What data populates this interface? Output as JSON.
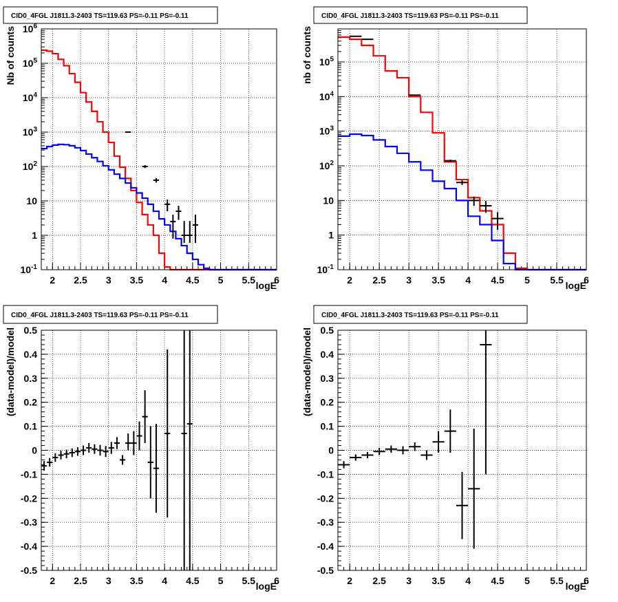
{
  "chart_data": [
    {
      "type": "step",
      "title": "CID0_4FGL J1811.3-2403 TS=119.63 PS=-0.11 PS=-0.11",
      "xlabel": "logE",
      "ylabel": "Nb of counts",
      "xlim": [
        1.8,
        6.0
      ],
      "ylim": [
        0.1,
        1000000
      ],
      "yscale": "log",
      "grid": true,
      "x_ticks": [
        "2",
        "2.5",
        "3",
        "3.5",
        "4",
        "4.5",
        "5",
        "5.5",
        "6"
      ],
      "y_ticks": [
        "10^-1",
        "1",
        "10",
        "10^2",
        "10^3",
        "10^4",
        "10^5",
        "10^6"
      ],
      "bin_edges": [
        1.8,
        1.9,
        2.0,
        2.1,
        2.2,
        2.3,
        2.4,
        2.5,
        2.6,
        2.7,
        2.8,
        2.9,
        3.0,
        3.1,
        3.2,
        3.3,
        3.4,
        3.5,
        3.6,
        3.7,
        3.8,
        3.9,
        4.0,
        4.1,
        4.2,
        4.3,
        4.4,
        4.5,
        4.6,
        4.7,
        4.8,
        4.9,
        5.0,
        5.1,
        5.2,
        5.3,
        5.4,
        5.5,
        5.6,
        5.7,
        5.8,
        5.9,
        6.0
      ],
      "series": [
        {
          "color": "#ff0000",
          "values": [
            240000,
            225000,
            190000,
            130000,
            85000,
            50000,
            28000,
            14000,
            7500,
            4000,
            2000,
            1000,
            500,
            200,
            95,
            45,
            20,
            9,
            4,
            2,
            1,
            0.3,
            0.12,
            0.1,
            0.1,
            0.1,
            0.1,
            0.1,
            0.1,
            0.1,
            0.1,
            0.1,
            0.1,
            0.1,
            0.1,
            0.1,
            0.1,
            0.1,
            0.1,
            0.1,
            0.1,
            0.1
          ]
        },
        {
          "color": "#0000ff",
          "values": [
            330,
            380,
            420,
            440,
            430,
            400,
            350,
            290,
            230,
            180,
            140,
            105,
            80,
            60,
            45,
            33,
            24,
            17,
            12,
            8,
            5,
            3,
            2,
            1.3,
            0.8,
            0.5,
            0.3,
            0.2,
            0.14,
            0.11,
            0.1,
            0.1,
            0.1,
            0.1,
            0.1,
            0.1,
            0.1,
            0.1,
            0.1,
            0.1,
            0.1,
            0.1
          ]
        }
      ],
      "data_points": [
        {
          "x": 3.35,
          "y": 1000,
          "xerr": 0.05,
          "ylo": 960,
          "yhi": 1040
        },
        {
          "x": 3.65,
          "y": 100,
          "xerr": 0.05,
          "ylo": 90,
          "yhi": 110
        },
        {
          "x": 3.85,
          "y": 40,
          "xerr": 0.05,
          "ylo": 34,
          "yhi": 46
        },
        {
          "x": 4.05,
          "y": 8,
          "xerr": 0.05,
          "ylo": 5,
          "yhi": 11
        },
        {
          "x": 4.15,
          "y": 2.5,
          "xerr": 0.05,
          "ylo": 0.8,
          "yhi": 4
        },
        {
          "x": 4.25,
          "y": 5,
          "xerr": 0.05,
          "ylo": 2.8,
          "yhi": 7.2
        },
        {
          "x": 4.35,
          "y": 1,
          "xerr": 0.05,
          "ylo": 0.6,
          "yhi": 2.6
        },
        {
          "x": 4.45,
          "y": 1,
          "xerr": 0.05,
          "ylo": 0.6,
          "yhi": 2.6
        },
        {
          "x": 4.55,
          "y": 2,
          "xerr": 0.05,
          "ylo": 0.6,
          "yhi": 4
        }
      ]
    },
    {
      "type": "step",
      "title": "CID0_4FGL J1811.3-2403 TS=119.63 PS=-0.11 PS=-0.11",
      "xlabel": "logE",
      "ylabel": "nb of counts",
      "xlim": [
        1.8,
        6.0
      ],
      "ylim": [
        0.1,
        900000
      ],
      "yscale": "log",
      "grid": true,
      "x_ticks": [
        "2",
        "2.5",
        "3",
        "3.5",
        "4",
        "4.5",
        "5",
        "5.5",
        "6"
      ],
      "y_ticks": [
        "10^-1",
        "1",
        "10",
        "10^2",
        "10^3",
        "10^4",
        "10^5"
      ],
      "bin_edges": [
        1.8,
        2.0,
        2.2,
        2.4,
        2.6,
        2.8,
        3.0,
        3.2,
        3.4,
        3.6,
        3.8,
        4.0,
        4.2,
        4.4,
        4.6,
        4.8,
        5.0,
        5.2,
        5.4,
        5.6,
        5.8,
        6.0
      ],
      "series": [
        {
          "color": "#ff0000",
          "values": [
            520000,
            450000,
            300000,
            150000,
            55000,
            35000,
            10000,
            3500,
            900,
            130,
            40,
            12,
            5,
            2,
            0.3,
            0.11,
            0.1,
            0.1,
            0.1,
            0.1,
            0.1
          ]
        },
        {
          "color": "#0000ff",
          "values": [
            720,
            820,
            750,
            560,
            360,
            230,
            130,
            75,
            36,
            22,
            10,
            3.5,
            2,
            0.7,
            0.15,
            0.1,
            0.1,
            0.1,
            0.1,
            0.1,
            0.1
          ]
        }
      ],
      "data_points": [
        {
          "x": 2.1,
          "y": 550000,
          "xerr": 0.1,
          "ylo": 540000,
          "yhi": 560000
        },
        {
          "x": 2.3,
          "y": 450000,
          "xerr": 0.1,
          "ylo": 440000,
          "yhi": 460000
        },
        {
          "x": 3.1,
          "y": 11000,
          "xerr": 0.1,
          "ylo": 10700,
          "yhi": 11300
        },
        {
          "x": 3.7,
          "y": 140,
          "xerr": 0.1,
          "ylo": 128,
          "yhi": 152
        },
        {
          "x": 3.9,
          "y": 33,
          "xerr": 0.1,
          "ylo": 28,
          "yhi": 38
        },
        {
          "x": 4.1,
          "y": 10,
          "xerr": 0.1,
          "ylo": 7,
          "yhi": 13
        },
        {
          "x": 4.3,
          "y": 7,
          "xerr": 0.1,
          "ylo": 4.4,
          "yhi": 9.6
        },
        {
          "x": 4.5,
          "y": 3,
          "xerr": 0.1,
          "ylo": 1.4,
          "yhi": 4.6
        }
      ]
    },
    {
      "type": "scatter",
      "title": "CID0_4FGL J1811.3-2403 TS=119.63 PS=-0.11 PS=-0.11",
      "xlabel": "logE",
      "ylabel": "(data-model)/model",
      "xlim": [
        1.8,
        6.0
      ],
      "ylim": [
        -0.5,
        0.5
      ],
      "grid": true,
      "x_ticks": [
        "2",
        "2.5",
        "3",
        "3.5",
        "4",
        "4.5",
        "5",
        "5.5",
        "6"
      ],
      "y_ticks": [
        "-0.5",
        "-0.4",
        "-0.3",
        "-0.2",
        "-0.1",
        "0",
        "0.1",
        "0.2",
        "0.3",
        "0.4",
        "0.5"
      ],
      "data_points": [
        {
          "x": 1.85,
          "y": -0.065,
          "xerr": 0.05,
          "ylo": -0.085,
          "yhi": -0.045
        },
        {
          "x": 1.95,
          "y": -0.05,
          "xerr": 0.05,
          "ylo": -0.068,
          "yhi": -0.032
        },
        {
          "x": 2.05,
          "y": -0.03,
          "xerr": 0.05,
          "ylo": -0.048,
          "yhi": -0.012
        },
        {
          "x": 2.15,
          "y": -0.02,
          "xerr": 0.05,
          "ylo": -0.038,
          "yhi": -0.002
        },
        {
          "x": 2.25,
          "y": -0.015,
          "xerr": 0.05,
          "ylo": -0.033,
          "yhi": 0.003
        },
        {
          "x": 2.35,
          "y": -0.01,
          "xerr": 0.05,
          "ylo": -0.028,
          "yhi": 0.008
        },
        {
          "x": 2.45,
          "y": -0.005,
          "xerr": 0.05,
          "ylo": -0.023,
          "yhi": 0.013
        },
        {
          "x": 2.55,
          "y": 0.0,
          "xerr": 0.05,
          "ylo": -0.02,
          "yhi": 0.02
        },
        {
          "x": 2.65,
          "y": 0.01,
          "xerr": 0.05,
          "ylo": -0.01,
          "yhi": 0.03
        },
        {
          "x": 2.75,
          "y": 0.005,
          "xerr": 0.05,
          "ylo": -0.015,
          "yhi": 0.025
        },
        {
          "x": 2.85,
          "y": 0.0,
          "xerr": 0.05,
          "ylo": -0.022,
          "yhi": 0.022
        },
        {
          "x": 2.95,
          "y": -0.005,
          "xerr": 0.05,
          "ylo": -0.028,
          "yhi": 0.018
        },
        {
          "x": 3.05,
          "y": 0.01,
          "xerr": 0.05,
          "ylo": -0.015,
          "yhi": 0.035
        },
        {
          "x": 3.15,
          "y": 0.03,
          "xerr": 0.05,
          "ylo": 0.005,
          "yhi": 0.055
        },
        {
          "x": 3.25,
          "y": -0.04,
          "xerr": 0.05,
          "ylo": -0.06,
          "yhi": -0.02
        },
        {
          "x": 3.35,
          "y": 0.03,
          "xerr": 0.05,
          "ylo": 0.0,
          "yhi": 0.07
        },
        {
          "x": 3.45,
          "y": 0.03,
          "xerr": 0.05,
          "ylo": -0.02,
          "yhi": 0.08
        },
        {
          "x": 3.55,
          "y": 0.06,
          "xerr": 0.05,
          "ylo": 0.0,
          "yhi": 0.12
        },
        {
          "x": 3.65,
          "y": 0.14,
          "xerr": 0.05,
          "ylo": 0.03,
          "yhi": 0.25
        },
        {
          "x": 3.75,
          "y": -0.05,
          "xerr": 0.05,
          "ylo": -0.2,
          "yhi": 0.1
        },
        {
          "x": 3.85,
          "y": -0.075,
          "xerr": 0.05,
          "ylo": -0.26,
          "yhi": 0.11
        },
        {
          "x": 4.05,
          "y": 0.07,
          "xerr": 0.05,
          "ylo": -0.28,
          "yhi": 0.42
        },
        {
          "x": 4.35,
          "y": 0.07,
          "xerr": 0.05,
          "ylo": -0.5,
          "yhi": 0.5
        },
        {
          "x": 4.45,
          "y": 0.11,
          "xerr": 0.05,
          "ylo": -0.5,
          "yhi": 0.5
        }
      ]
    },
    {
      "type": "scatter",
      "title": "CID0_4FGL J1811.3-2403 TS=119.63 PS=-0.11 PS=-0.11",
      "xlabel": "logE",
      "ylabel": "(data-model)/model",
      "xlim": [
        1.8,
        6.0
      ],
      "ylim": [
        -0.5,
        0.5
      ],
      "grid": true,
      "x_ticks": [
        "2",
        "2.5",
        "3",
        "3.5",
        "4",
        "4.5",
        "5",
        "5.5",
        "6"
      ],
      "y_ticks": [
        "-0.5",
        "-0.4",
        "-0.3",
        "-0.2",
        "-0.1",
        "0",
        "0.1",
        "0.2",
        "0.3",
        "0.4",
        "0.5"
      ],
      "data_points": [
        {
          "x": 1.9,
          "y": -0.06,
          "xerr": 0.1,
          "ylo": -0.075,
          "yhi": -0.045
        },
        {
          "x": 2.1,
          "y": -0.03,
          "xerr": 0.1,
          "ylo": -0.043,
          "yhi": -0.017
        },
        {
          "x": 2.3,
          "y": -0.02,
          "xerr": 0.1,
          "ylo": -0.033,
          "yhi": -0.007
        },
        {
          "x": 2.5,
          "y": -0.005,
          "xerr": 0.1,
          "ylo": -0.02,
          "yhi": 0.01
        },
        {
          "x": 2.7,
          "y": 0.005,
          "xerr": 0.1,
          "ylo": -0.01,
          "yhi": 0.02
        },
        {
          "x": 2.9,
          "y": 0.0,
          "xerr": 0.1,
          "ylo": -0.017,
          "yhi": 0.017
        },
        {
          "x": 3.1,
          "y": 0.015,
          "xerr": 0.1,
          "ylo": -0.003,
          "yhi": 0.033
        },
        {
          "x": 3.3,
          "y": -0.02,
          "xerr": 0.1,
          "ylo": -0.04,
          "yhi": 0.0
        },
        {
          "x": 3.5,
          "y": 0.035,
          "xerr": 0.1,
          "ylo": -0.01,
          "yhi": 0.08
        },
        {
          "x": 3.7,
          "y": 0.08,
          "xerr": 0.1,
          "ylo": -0.01,
          "yhi": 0.17
        },
        {
          "x": 3.9,
          "y": -0.23,
          "xerr": 0.1,
          "ylo": -0.37,
          "yhi": -0.09
        },
        {
          "x": 4.1,
          "y": -0.16,
          "xerr": 0.1,
          "ylo": -0.41,
          "yhi": 0.09
        },
        {
          "x": 4.3,
          "y": 0.44,
          "xerr": 0.1,
          "ylo": -0.1,
          "yhi": 0.5
        }
      ]
    }
  ]
}
